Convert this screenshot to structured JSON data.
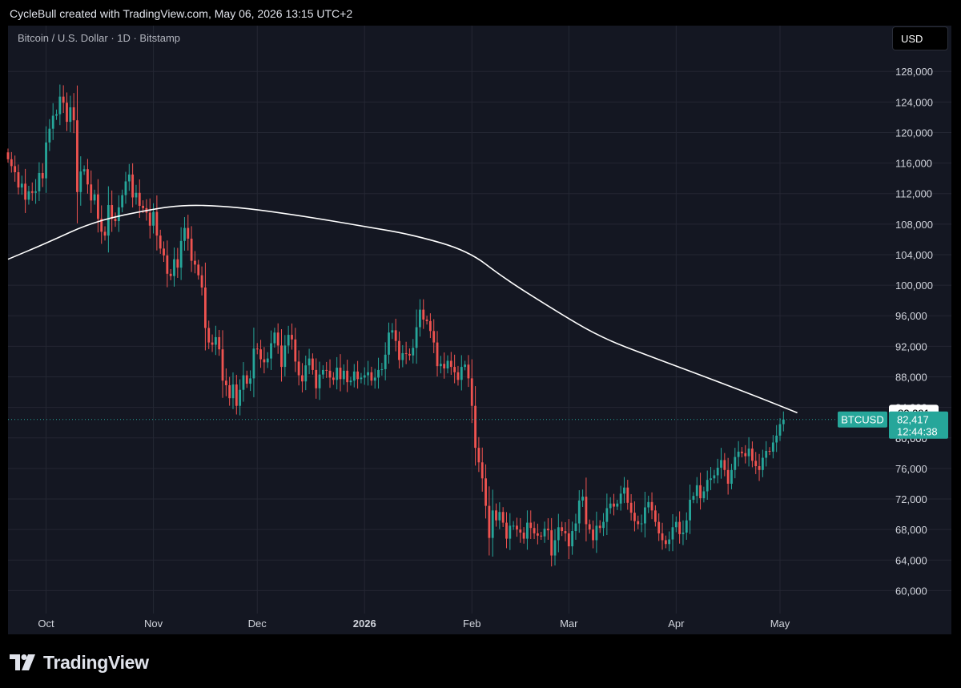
{
  "header": {
    "attribution": "CycleBull created with TradingView.com, May 06, 2026 13:15 UTC+2"
  },
  "chart_header": {
    "symbol": "Bitcoin / U.S. Dollar · 1D · Bitstamp",
    "currency_button": "USD"
  },
  "footer": {
    "brand": "TradingView"
  },
  "colors": {
    "up": "#26a69a",
    "down": "#ef5350",
    "ma_line": "#ffffff",
    "grid": "#242733",
    "background": "#141722"
  },
  "chart_data": {
    "type": "candlestick",
    "title": "Bitcoin / U.S. Dollar · 1D · Bitstamp",
    "ylim": [
      57000,
      134000
    ],
    "y_ticks": [
      60000,
      64000,
      68000,
      72000,
      76000,
      80000,
      84000,
      88000,
      92000,
      96000,
      100000,
      104000,
      108000,
      112000,
      116000,
      120000,
      124000,
      128000
    ],
    "y_tick_labels": [
      "60,000",
      "64,000",
      "68,000",
      "72,000",
      "76,000",
      "80,000",
      "84,000",
      "88,000",
      "92,000",
      "96,000",
      "100,000",
      "104,000",
      "108,000",
      "112,000",
      "116,000",
      "120,000",
      "124,000",
      "128,000"
    ],
    "x_start_date": "2025-09-20",
    "x_end_date": "2026-06-01",
    "x_ticks": [
      {
        "date": "2025-10-01",
        "label": "Oct",
        "bold": false
      },
      {
        "date": "2025-11-01",
        "label": "Nov",
        "bold": false
      },
      {
        "date": "2025-12-01",
        "label": "Dec",
        "bold": false
      },
      {
        "date": "2026-01-01",
        "label": "2026",
        "bold": true
      },
      {
        "date": "2026-02-01",
        "label": "Feb",
        "bold": false
      },
      {
        "date": "2026-03-01",
        "label": "Mar",
        "bold": false
      },
      {
        "date": "2026-04-01",
        "label": "Apr",
        "bold": false
      },
      {
        "date": "2026-05-01",
        "label": "May",
        "bold": false
      }
    ],
    "series": [
      {
        "name": "BTCUSD",
        "type": "candlestick",
        "start_date": "2025-09-20",
        "closes": [
          116500,
          115600,
          114800,
          112800,
          113300,
          111200,
          112300,
          112100,
          112300,
          114700,
          114000,
          118700,
          120500,
          122200,
          122400,
          124700,
          123900,
          121400,
          123300,
          121600,
          112200,
          114900,
          115200,
          113200,
          111100,
          111900,
          108700,
          107000,
          106500,
          110500,
          108700,
          108400,
          110200,
          111800,
          113600,
          114500,
          111500,
          112100,
          110400,
          110100,
          109500,
          107800,
          109600,
          106500,
          104800,
          103900,
          101500,
          101200,
          103400,
          102300,
          105800,
          107500,
          106100,
          103200,
          102700,
          101300,
          99700,
          94400,
          92500,
          92200,
          93200,
          91600,
          87500,
          86900,
          85200,
          87000,
          84200,
          86300,
          88200,
          87100,
          87800,
          91700,
          91600,
          90300,
          89900,
          90400,
          92400,
          93800,
          92100,
          89300,
          92100,
          93500,
          92900,
          90000,
          88200,
          87400,
          89500,
          90400,
          88900,
          86500,
          88300,
          88900,
          88800,
          87900,
          87600,
          89200,
          87700,
          88800,
          87300,
          87500,
          88700,
          87700,
          87900,
          88200,
          88600,
          87500,
          87900,
          88900,
          89000,
          90900,
          93800,
          94100,
          92700,
          90200,
          91100,
          91000,
          90800,
          91800,
          94500,
          96800,
          95500,
          95300,
          94000,
          92500,
          89400,
          89700,
          89100,
          90100,
          89300,
          88600,
          87600,
          89300,
          89600,
          87800,
          84200,
          78700,
          76800,
          74700,
          71100,
          66900,
          70500,
          69200,
          70300,
          68900,
          66800,
          68500,
          68500,
          68000,
          67600,
          66800,
          68900,
          68200,
          67500,
          67200,
          67100,
          68100,
          67900,
          64600,
          66600,
          68300,
          67800,
          67500,
          65800,
          67800,
          68800,
          71800,
          72300,
          68700,
          68000,
          66600,
          68500,
          68200,
          69000,
          70800,
          71400,
          71000,
          71400,
          72700,
          73500,
          71500,
          70200,
          69100,
          68700,
          68800,
          70900,
          71600,
          70500,
          69000,
          67500,
          66600,
          66100,
          66700,
          68300,
          69000,
          67400,
          67600,
          69200,
          71900,
          72400,
          73800,
          72100,
          73000,
          74500,
          74700,
          75100,
          76100,
          77100,
          75800,
          74000,
          75800,
          77500,
          78200,
          78000,
          77600,
          78600,
          77000,
          76300,
          75800,
          77400,
          78300,
          78200,
          79400,
          80300,
          81800
        ],
        "last_close": 82417
      },
      {
        "name": "200-day moving average",
        "type": "line",
        "points": [
          [
            "2025-09-20",
            103400
          ],
          [
            "2025-10-01",
            105500
          ],
          [
            "2025-10-15",
            108400
          ],
          [
            "2025-11-01",
            110000
          ],
          [
            "2025-11-10",
            110500
          ],
          [
            "2025-11-20",
            110400
          ],
          [
            "2025-12-01",
            109900
          ],
          [
            "2025-12-15",
            109000
          ],
          [
            "2026-01-01",
            107700
          ],
          [
            "2026-01-15",
            106600
          ],
          [
            "2026-01-31",
            104500
          ],
          [
            "2026-02-10",
            101000
          ],
          [
            "2026-02-25",
            96700
          ],
          [
            "2026-03-10",
            93200
          ],
          [
            "2026-03-25",
            90600
          ],
          [
            "2026-04-10",
            87900
          ],
          [
            "2026-04-25",
            85300
          ],
          [
            "2026-05-06",
            83291
          ]
        ],
        "last_value": 83291
      }
    ],
    "price_labels": {
      "ma_value": "83,291",
      "symbol": "BTCUSD",
      "last_price": "82,417",
      "countdown": "12:44:38",
      "hidden_tick": "80,000"
    }
  }
}
